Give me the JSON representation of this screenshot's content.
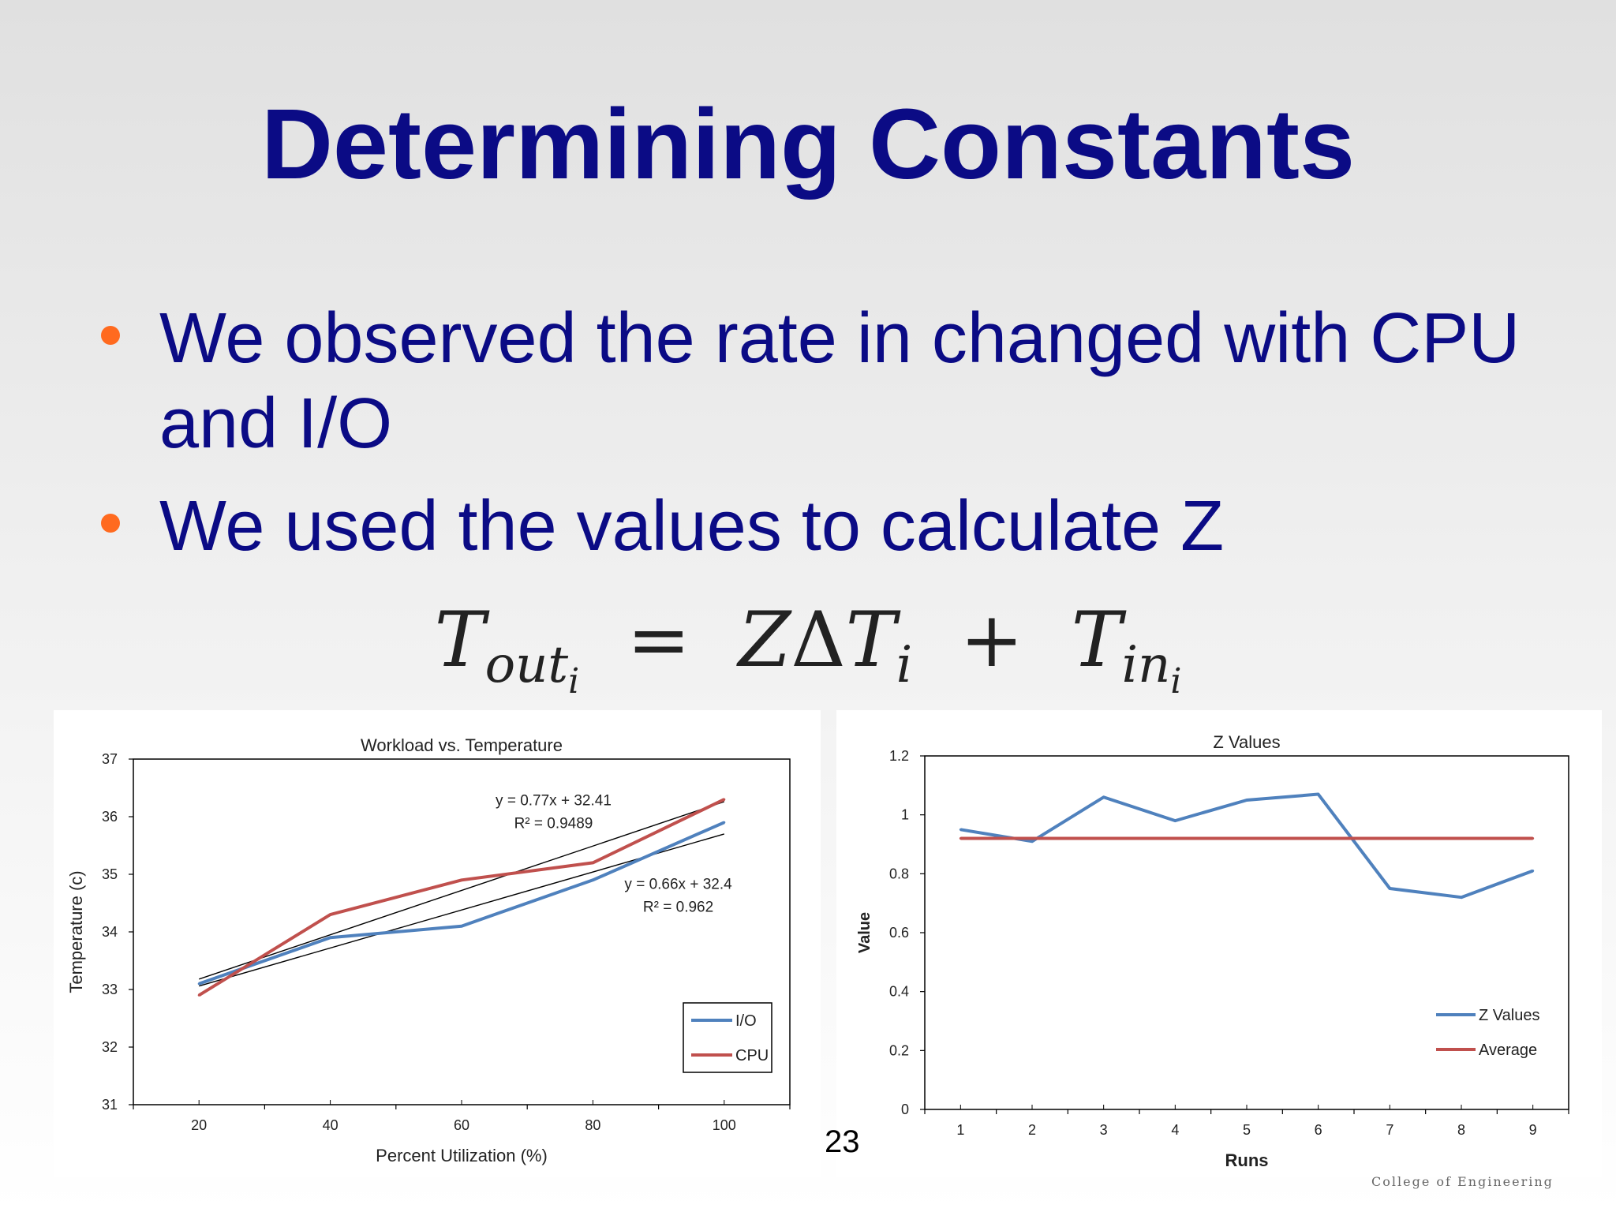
{
  "slide": {
    "title": "Determining Constants",
    "bullets": [
      "We observed the rate in changed with CPU and I/O",
      "We used the values to calculate Z"
    ],
    "equation": {
      "lhs_main": "T",
      "lhs_sub": "out",
      "lhs_subsub": "i",
      "equals": "=",
      "rhs_z": "Z",
      "rhs_delta": "Δ",
      "rhs_t": "T",
      "rhs_t_sub": "i",
      "plus": "+",
      "rhs2_main": "T",
      "rhs2_sub": "in",
      "rhs2_subsub": "i"
    },
    "page_number": "23",
    "footer": "College of Engineering",
    "colors": {
      "title": "#0b0b85",
      "bullet": "#ff6a1f",
      "series_blue": "#4f81bd",
      "series_red": "#c0504d"
    }
  },
  "chart_data": [
    {
      "type": "line",
      "title": "Workload vs. Temperature",
      "xlabel": "Percent Utilization (%)",
      "ylabel": "Temperature (c)",
      "x": [
        20,
        40,
        60,
        80,
        100
      ],
      "xlim": [
        10,
        110
      ],
      "ylim": [
        31,
        37
      ],
      "xticks": [
        20,
        40,
        60,
        80,
        100
      ],
      "yticks": [
        31,
        32,
        33,
        34,
        35,
        36,
        37
      ],
      "legend_position": "bottom-right",
      "series": [
        {
          "name": "I/O",
          "values": [
            33.1,
            33.9,
            34.1,
            34.9,
            35.9
          ],
          "color": "#4f81bd"
        },
        {
          "name": "CPU",
          "values": [
            32.9,
            34.3,
            34.9,
            35.2,
            36.3
          ],
          "color": "#c0504d"
        }
      ],
      "trendlines": [
        {
          "equation": "y = 0.77x + 32.41",
          "r2": "R² = 0.9489",
          "slope": 0.77,
          "intercept": 32.41
        },
        {
          "equation": "y = 0.66x + 32.4",
          "r2": "R² = 0.962",
          "slope": 0.66,
          "intercept": 32.4
        }
      ]
    },
    {
      "type": "line",
      "title": "Z Values",
      "xlabel": "Runs",
      "ylabel": "Value",
      "x": [
        1,
        2,
        3,
        4,
        5,
        6,
        7,
        8,
        9
      ],
      "xlim": [
        0.5,
        9.5
      ],
      "ylim": [
        0,
        1.2
      ],
      "xticks": [
        1,
        2,
        3,
        4,
        5,
        6,
        7,
        8,
        9
      ],
      "yticks": [
        0,
        0.2,
        0.4,
        0.6,
        0.8,
        1,
        1.2
      ],
      "legend_position": "bottom-right",
      "series": [
        {
          "name": "Z Values",
          "values": [
            0.95,
            0.91,
            1.06,
            0.98,
            1.05,
            1.07,
            0.75,
            0.72,
            0.81
          ],
          "color": "#4f81bd"
        },
        {
          "name": "Average",
          "values": [
            0.92,
            0.92,
            0.92,
            0.92,
            0.92,
            0.92,
            0.92,
            0.92,
            0.92
          ],
          "color": "#c0504d"
        }
      ]
    }
  ]
}
